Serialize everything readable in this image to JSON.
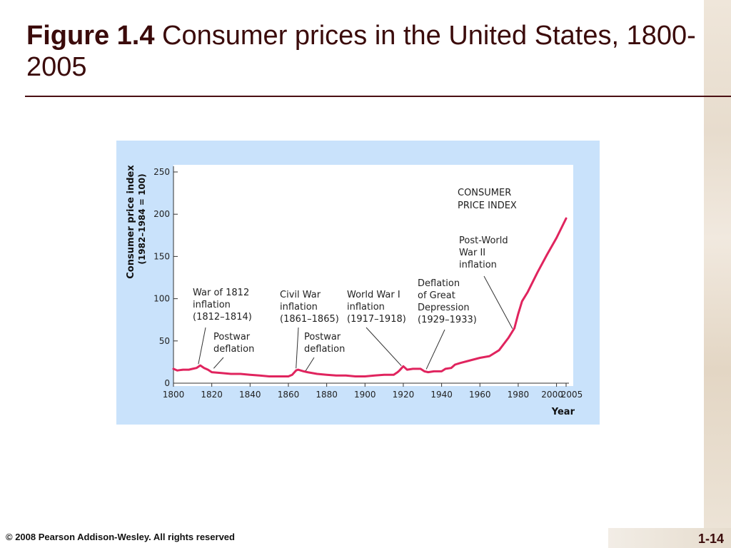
{
  "slide": {
    "title_bold": "Figure 1.4",
    "title_rest": " Consumer prices in the United States, 1800-2005",
    "footer": "© 2008 Pearson Addison-Wesley. All rights reserved",
    "page_number": "1-14"
  },
  "chart_data": {
    "type": "line",
    "title": "",
    "xlabel": "Year",
    "ylabel_line1": "Consumer price index",
    "ylabel_line2": "(1982–1984 = 100)",
    "xlim": [
      1800,
      2005
    ],
    "ylim": [
      0,
      250
    ],
    "x_ticks": [
      1800,
      1820,
      1840,
      1860,
      1880,
      1900,
      1920,
      1940,
      1960,
      1980,
      2000,
      2005
    ],
    "y_ticks": [
      0,
      50,
      100,
      150,
      200,
      250
    ],
    "grid": false,
    "line_color": "#e0245e",
    "series": [
      {
        "name": "CONSUMER PRICE INDEX",
        "x": [
          1800,
          1802,
          1805,
          1808,
          1810,
          1812,
          1814,
          1816,
          1818,
          1820,
          1825,
          1830,
          1835,
          1840,
          1845,
          1850,
          1855,
          1860,
          1862,
          1864,
          1865,
          1868,
          1870,
          1875,
          1880,
          1885,
          1890,
          1895,
          1900,
          1905,
          1910,
          1915,
          1917,
          1918,
          1920,
          1922,
          1925,
          1929,
          1931,
          1933,
          1936,
          1940,
          1942,
          1945,
          1947,
          1950,
          1955,
          1960,
          1965,
          1970,
          1975,
          1978,
          1980,
          1982,
          1985,
          1990,
          1995,
          2000,
          2005
        ],
        "y": [
          17,
          15,
          16,
          16,
          17,
          18,
          21,
          18,
          16,
          13,
          12,
          11,
          11,
          10,
          9,
          8,
          8,
          8,
          10,
          15,
          16,
          14,
          13,
          11,
          10,
          9,
          9,
          8,
          8,
          9,
          10,
          10,
          13,
          15,
          20,
          16,
          17,
          17,
          14,
          13,
          14,
          14,
          17,
          18,
          22,
          24,
          27,
          30,
          32,
          39,
          54,
          65,
          82,
          97,
          108,
          131,
          152,
          172,
          195
        ]
      }
    ],
    "legend_label_line1": "CONSUMER",
    "legend_label_line2": "PRICE INDEX",
    "annotations": [
      {
        "id": "war1812",
        "lines": [
          "War of 1812",
          "inflation",
          "(1812–1814)"
        ],
        "point": [
          1813,
          20
        ]
      },
      {
        "id": "postwar1",
        "lines": [
          "Postwar",
          "deflation"
        ],
        "point": [
          1821,
          15
        ]
      },
      {
        "id": "civilwar",
        "lines": [
          "Civil War",
          "inflation",
          "(1861–1865)"
        ],
        "point": [
          1864,
          15
        ]
      },
      {
        "id": "postwar2",
        "lines": [
          "Postwar",
          "deflation"
        ],
        "point": [
          1869,
          12
        ]
      },
      {
        "id": "ww1",
        "lines": [
          "World War I",
          "inflation",
          "(1917–1918)"
        ],
        "point": [
          1919,
          18
        ]
      },
      {
        "id": "depression",
        "lines": [
          "Deflation",
          "of Great",
          "Depression",
          "(1929–1933)"
        ],
        "point": [
          1932,
          14
        ]
      },
      {
        "id": "ww2",
        "lines": [
          "Post-World",
          "War II",
          "inflation"
        ],
        "point": [
          1977,
          62
        ]
      }
    ]
  }
}
